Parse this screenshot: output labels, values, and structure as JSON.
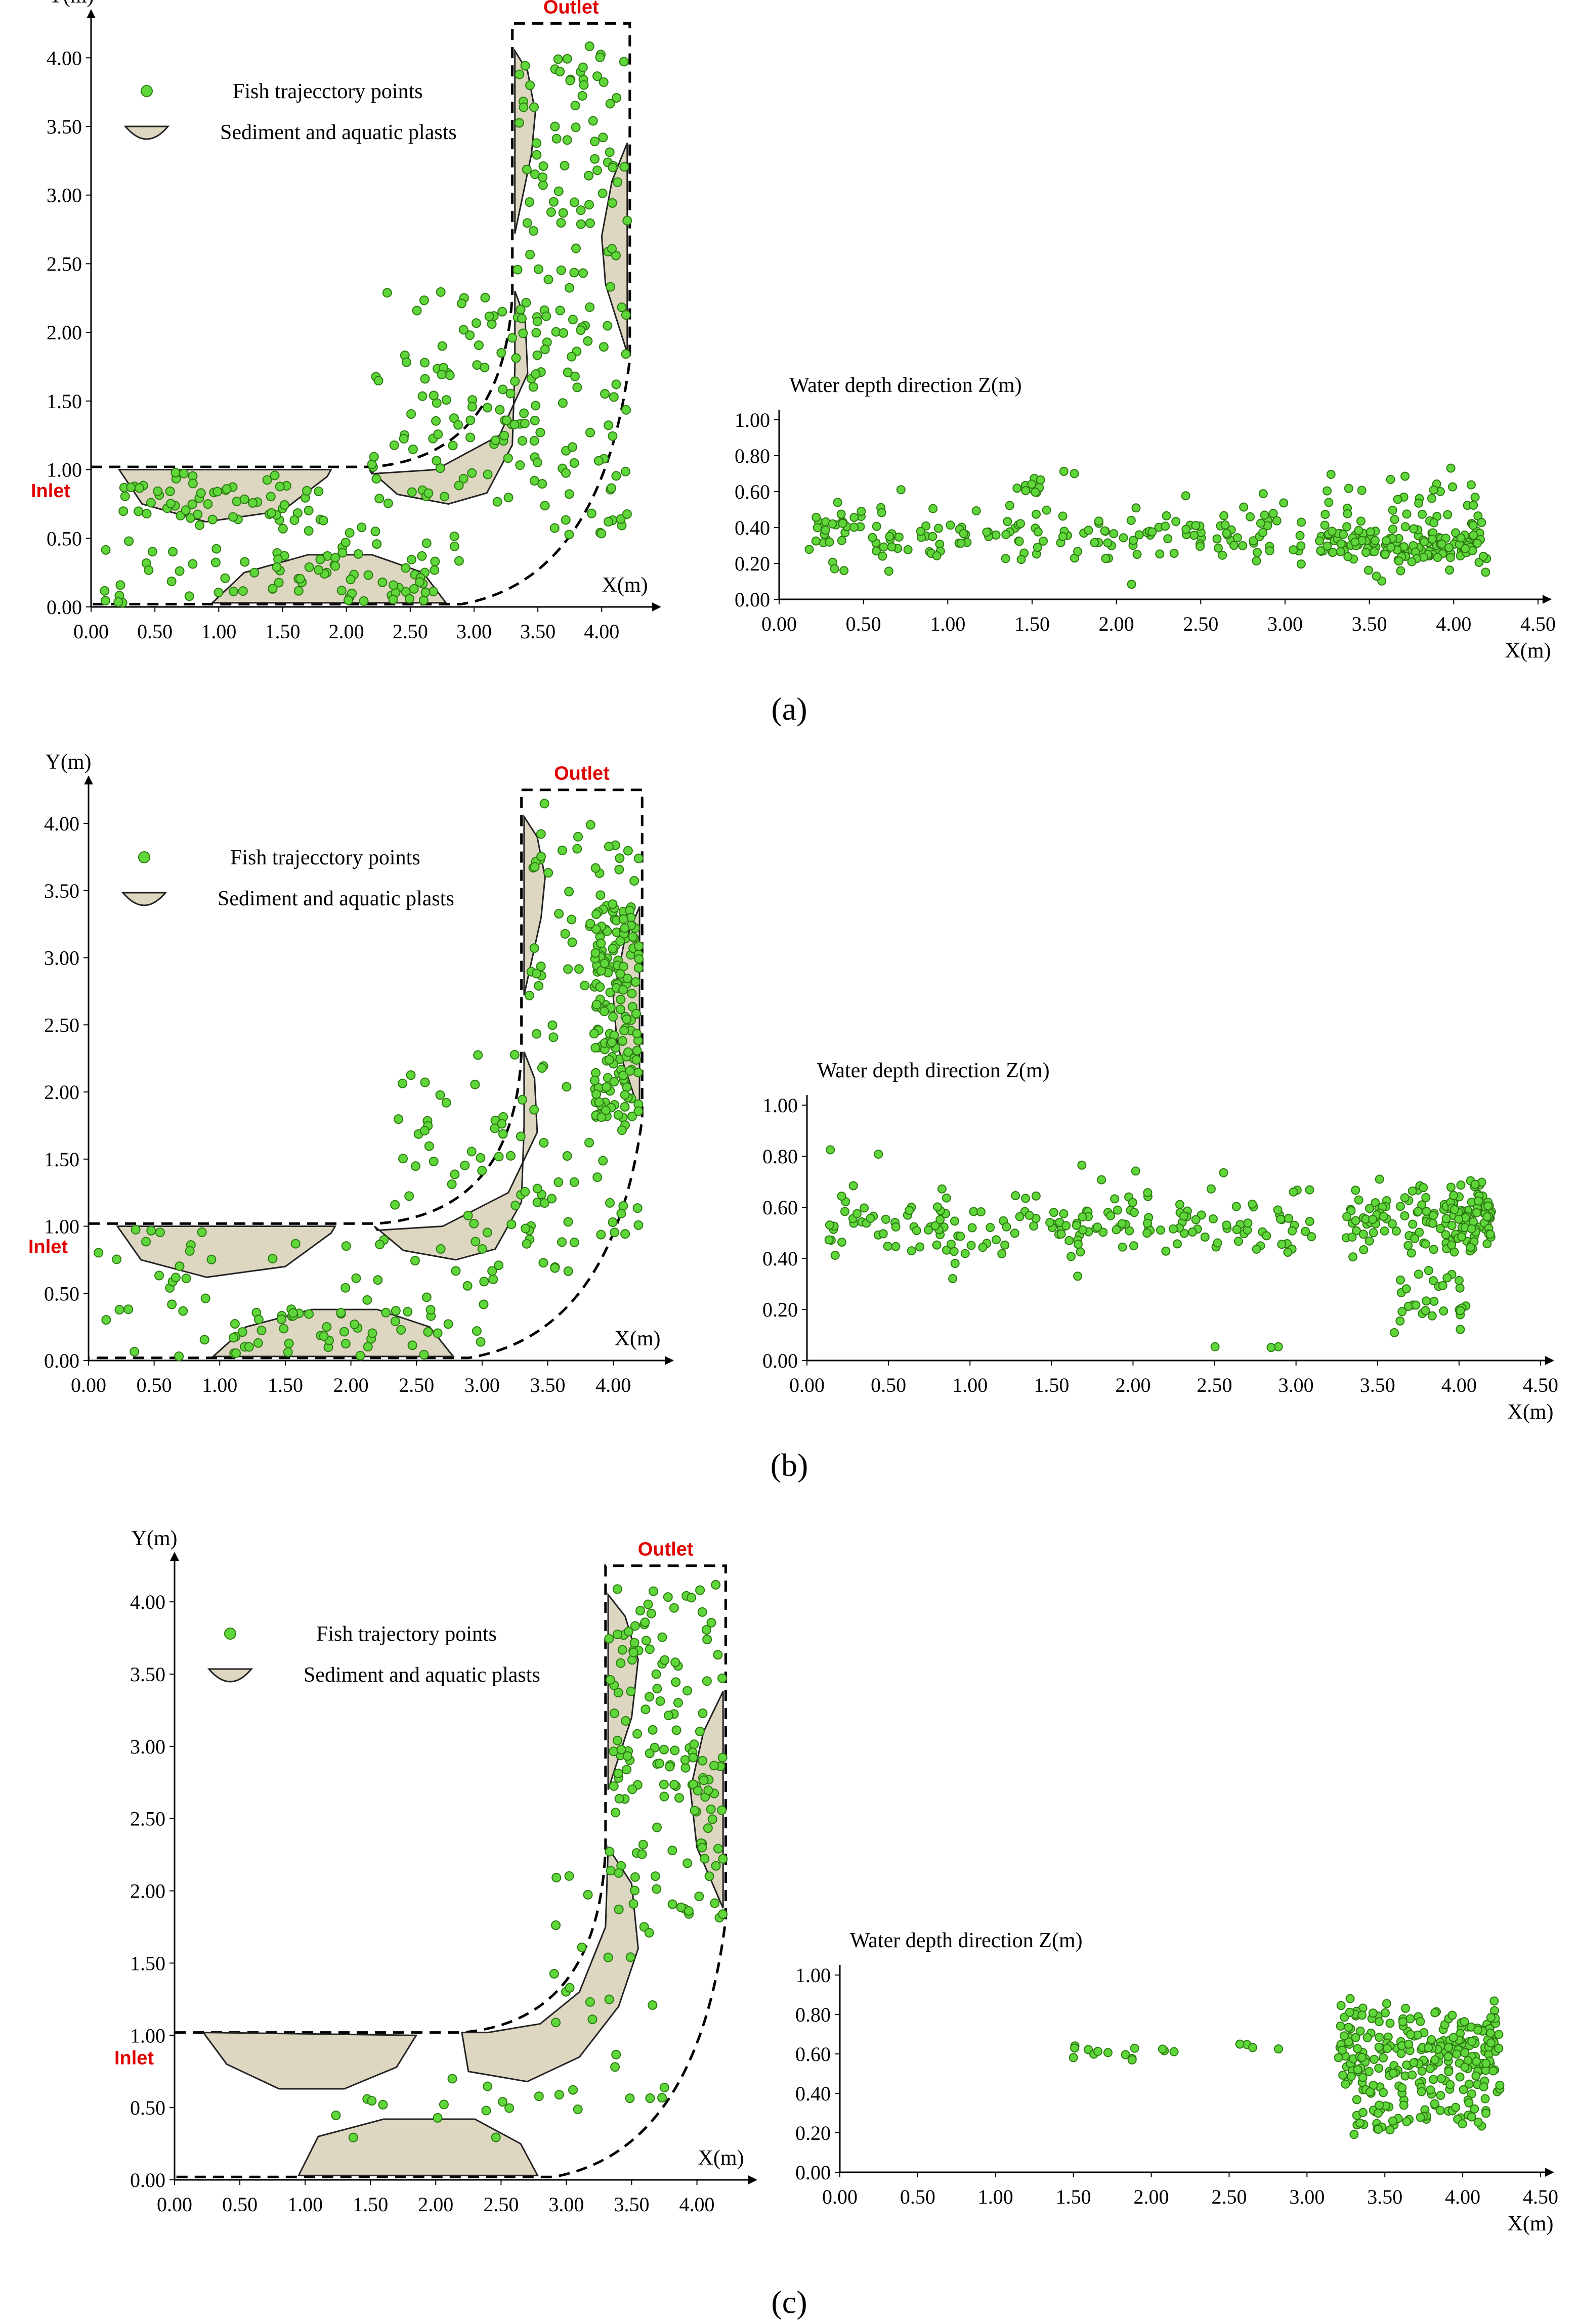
{
  "colors": {
    "point_fill": "#5fd63a",
    "point_stroke": "#2d7a12",
    "sediment_fill": "#ddd6c1",
    "label_red": "#e00000"
  },
  "chart_data": [
    {
      "type": "scatter",
      "view": "plan",
      "panel": "a",
      "ylabel": "Y(m)",
      "xlabel": "X(m)",
      "xlim": [
        0,
        4.3
      ],
      "ylim": [
        0,
        4.2
      ],
      "x_ticks": [
        "0.00",
        "0.50",
        "1.00",
        "1.50",
        "2.00",
        "2.50",
        "3.00",
        "3.50",
        "4.00"
      ],
      "y_ticks": [
        "0.00",
        "0.50",
        "1.00",
        "1.50",
        "2.00",
        "2.50",
        "3.00",
        "3.50",
        "4.00"
      ],
      "inlet_label": "Inlet",
      "outlet_label": "Outlet",
      "legend": {
        "points": "Fish trajecctory points",
        "sediment": "Sediment and aquatic plasts"
      },
      "sediment_patches": [
        {
          "name": "upper-right",
          "points": [
            [
              3.32,
              4.05
            ],
            [
              3.42,
              3.9
            ],
            [
              3.48,
              3.6
            ],
            [
              3.45,
              3.3
            ],
            [
              3.32,
              2.72
            ]
          ]
        },
        {
          "name": "right",
          "points": [
            [
              4.2,
              3.38
            ],
            [
              4.08,
              3.1
            ],
            [
              4.0,
              2.7
            ],
            [
              4.03,
              2.35
            ],
            [
              4.2,
              1.85
            ]
          ]
        },
        {
          "name": "bend",
          "points": [
            [
              3.32,
              2.3
            ],
            [
              3.4,
              2.1
            ],
            [
              3.42,
              1.7
            ],
            [
              3.2,
              1.25
            ],
            [
              2.7,
              1.0
            ],
            [
              2.2,
              0.97
            ],
            [
              2.18,
              1.0
            ],
            [
              2.4,
              0.82
            ],
            [
              2.8,
              0.75
            ],
            [
              3.1,
              0.83
            ],
            [
              3.3,
              1.18
            ],
            [
              3.32,
              1.75
            ]
          ]
        },
        {
          "name": "left",
          "points": [
            [
              0.22,
              1.0
            ],
            [
              0.4,
              0.75
            ],
            [
              0.9,
              0.62
            ],
            [
              1.5,
              0.7
            ],
            [
              1.85,
              0.95
            ],
            [
              1.88,
              1.0
            ]
          ]
        },
        {
          "name": "bottom",
          "points": [
            [
              0.95,
              0.03
            ],
            [
              1.2,
              0.25
            ],
            [
              1.7,
              0.38
            ],
            [
              2.2,
              0.38
            ],
            [
              2.6,
              0.25
            ],
            [
              2.78,
              0.03
            ]
          ]
        }
      ],
      "clusters": [
        {
          "n": 60,
          "x": [
            0.2,
            1.85
          ],
          "y": [
            0.62,
            0.98
          ]
        },
        {
          "n": 55,
          "x": [
            0.05,
            2.9
          ],
          "y": [
            0.03,
            0.6
          ]
        },
        {
          "n": 35,
          "x": [
            1.0,
            2.7
          ],
          "y": [
            0.03,
            0.35
          ]
        },
        {
          "n": 95,
          "x": [
            2.2,
            3.55
          ],
          "y": [
            0.75,
            2.3
          ]
        },
        {
          "n": 70,
          "x": [
            3.3,
            4.2
          ],
          "y": [
            0.45,
            2.2
          ]
        },
        {
          "n": 80,
          "x": [
            3.32,
            4.2
          ],
          "y": [
            2.2,
            4.15
          ]
        }
      ],
      "seed": 11
    },
    {
      "type": "scatter",
      "view": "depth",
      "panel": "a",
      "ylabel": "Water depth direction Z(m)",
      "xlabel": "X(m)",
      "xlim": [
        0,
        4.5
      ],
      "ylim": [
        0,
        1.0
      ],
      "x_ticks": [
        "0.00",
        "0.50",
        "1.00",
        "1.50",
        "2.00",
        "2.50",
        "3.00",
        "3.50",
        "4.00",
        "4.50"
      ],
      "y_ticks": [
        "0.00",
        "0.20",
        "0.40",
        "0.60",
        "0.80",
        "1.00"
      ],
      "clusters": [
        {
          "n": 130,
          "x": [
            0.15,
            3.1
          ],
          "y": [
            0.18,
            0.55
          ]
        },
        {
          "n": 50,
          "x": [
            0.15,
            3.1
          ],
          "y": [
            0.05,
            0.78
          ]
        },
        {
          "n": 110,
          "x": [
            3.2,
            4.2
          ],
          "y": [
            0.2,
            0.4
          ]
        },
        {
          "n": 70,
          "x": [
            3.2,
            4.2
          ],
          "y": [
            0.05,
            0.8
          ]
        },
        {
          "n": 12,
          "x": [
            1.4,
            1.6
          ],
          "y": [
            0.55,
            0.7
          ]
        }
      ],
      "seed": 23
    },
    {
      "type": "scatter",
      "view": "plan",
      "panel": "b",
      "ylabel": "Y(m)",
      "xlabel": "X(m)",
      "xlim": [
        0,
        4.3
      ],
      "ylim": [
        0,
        4.2
      ],
      "x_ticks": [
        "0.00",
        "0.50",
        "1.00",
        "1.50",
        "2.00",
        "2.50",
        "3.00",
        "3.50",
        "4.00"
      ],
      "y_ticks": [
        "0.00",
        "0.50",
        "1.00",
        "1.50",
        "2.00",
        "2.50",
        "3.00",
        "3.50",
        "4.00"
      ],
      "inlet_label": "Inlet",
      "outlet_label": "Outlet",
      "legend": {
        "points": "Fish trajecctory points",
        "sediment": "Sediment and aquatic plasts"
      },
      "sediment_patches": [
        {
          "name": "upper-right",
          "points": [
            [
              3.32,
              4.05
            ],
            [
              3.42,
              3.9
            ],
            [
              3.48,
              3.6
            ],
            [
              3.45,
              3.3
            ],
            [
              3.32,
              2.72
            ]
          ]
        },
        {
          "name": "right",
          "points": [
            [
              4.2,
              3.38
            ],
            [
              4.08,
              3.1
            ],
            [
              4.0,
              2.7
            ],
            [
              4.03,
              2.35
            ],
            [
              4.2,
              1.85
            ]
          ]
        },
        {
          "name": "bend",
          "points": [
            [
              3.32,
              2.3
            ],
            [
              3.4,
              2.1
            ],
            [
              3.42,
              1.7
            ],
            [
              3.2,
              1.25
            ],
            [
              2.7,
              1.0
            ],
            [
              2.2,
              0.97
            ],
            [
              2.18,
              1.0
            ],
            [
              2.4,
              0.82
            ],
            [
              2.8,
              0.75
            ],
            [
              3.1,
              0.83
            ],
            [
              3.3,
              1.18
            ],
            [
              3.32,
              1.75
            ]
          ]
        },
        {
          "name": "left",
          "points": [
            [
              0.22,
              1.0
            ],
            [
              0.4,
              0.75
            ],
            [
              0.9,
              0.62
            ],
            [
              1.5,
              0.7
            ],
            [
              1.85,
              0.95
            ],
            [
              1.88,
              1.0
            ]
          ]
        },
        {
          "name": "bottom",
          "points": [
            [
              0.95,
              0.03
            ],
            [
              1.2,
              0.25
            ],
            [
              1.7,
              0.38
            ],
            [
              2.2,
              0.38
            ],
            [
              2.6,
              0.25
            ],
            [
              2.78,
              0.03
            ]
          ]
        }
      ],
      "clusters": [
        {
          "n": 30,
          "x": [
            0.05,
            2.0
          ],
          "y": [
            0.03,
            0.98
          ]
        },
        {
          "n": 40,
          "x": [
            1.0,
            2.7
          ],
          "y": [
            0.03,
            0.38
          ]
        },
        {
          "n": 25,
          "x": [
            1.9,
            3.2
          ],
          "y": [
            0.1,
            0.9
          ]
        },
        {
          "n": 55,
          "x": [
            2.3,
            3.5
          ],
          "y": [
            0.8,
            2.3
          ]
        },
        {
          "n": 150,
          "x": [
            3.85,
            4.2
          ],
          "y": [
            1.8,
            3.4
          ]
        },
        {
          "n": 90,
          "x": [
            3.32,
            4.2
          ],
          "y": [
            0.6,
            4.15
          ]
        }
      ],
      "seed": 37
    },
    {
      "type": "scatter",
      "view": "depth",
      "panel": "b",
      "ylabel": "Water depth direction Z(m)",
      "xlabel": "X(m)",
      "xlim": [
        0,
        4.5
      ],
      "ylim": [
        0,
        1.0
      ],
      "x_ticks": [
        "0.00",
        "0.50",
        "1.00",
        "1.50",
        "2.00",
        "2.50",
        "3.00",
        "3.50",
        "4.00",
        "4.50"
      ],
      "y_ticks": [
        "0.00",
        "0.20",
        "0.40",
        "0.60",
        "0.80",
        "1.00"
      ],
      "clusters": [
        {
          "n": 130,
          "x": [
            0.1,
            3.1
          ],
          "y": [
            0.4,
            0.65
          ]
        },
        {
          "n": 55,
          "x": [
            0.1,
            3.1
          ],
          "y": [
            0.25,
            0.86
          ]
        },
        {
          "n": 100,
          "x": [
            3.3,
            4.2
          ],
          "y": [
            0.38,
            0.72
          ]
        },
        {
          "n": 60,
          "x": [
            3.9,
            4.2
          ],
          "y": [
            0.4,
            0.72
          ]
        },
        {
          "n": 30,
          "x": [
            3.6,
            4.05
          ],
          "y": [
            0.05,
            0.4
          ]
        },
        {
          "n": 3,
          "x": [
            2.3,
            3.1
          ],
          "y": [
            0.05,
            0.06
          ]
        }
      ],
      "seed": 41
    },
    {
      "type": "scatter",
      "view": "plan",
      "panel": "c",
      "ylabel": "Y(m)",
      "xlabel": "X(m)",
      "xlim": [
        0,
        4.3
      ],
      "ylim": [
        0,
        4.2
      ],
      "x_ticks": [
        "0.00",
        "0.50",
        "1.00",
        "1.50",
        "2.00",
        "2.50",
        "3.00",
        "3.50",
        "4.00"
      ],
      "y_ticks": [
        "0.00",
        "0.50",
        "1.00",
        "1.50",
        "2.00",
        "2.50",
        "3.00",
        "3.50",
        "4.00"
      ],
      "inlet_label": "Inlet",
      "outlet_label": "Outlet",
      "legend": {
        "points": "Fish trajectory points",
        "sediment": "Sediment and aquatic plasts"
      },
      "sediment_patches": [
        {
          "name": "upper-right",
          "points": [
            [
              3.32,
              4.05
            ],
            [
              3.45,
              3.9
            ],
            [
              3.55,
              3.6
            ],
            [
              3.5,
              3.2
            ],
            [
              3.32,
              2.7
            ]
          ]
        },
        {
          "name": "right",
          "points": [
            [
              4.2,
              3.38
            ],
            [
              4.05,
              3.1
            ],
            [
              3.95,
              2.7
            ],
            [
              4.0,
              2.3
            ],
            [
              4.2,
              1.88
            ]
          ]
        },
        {
          "name": "bend",
          "points": [
            [
              3.32,
              2.3
            ],
            [
              3.5,
              2.05
            ],
            [
              3.55,
              1.6
            ],
            [
              3.4,
              1.2
            ],
            [
              3.1,
              0.85
            ],
            [
              2.7,
              0.68
            ],
            [
              2.25,
              0.75
            ],
            [
              2.2,
              1.02
            ],
            [
              2.4,
              1.02
            ],
            [
              2.8,
              1.08
            ],
            [
              3.1,
              1.3
            ],
            [
              3.3,
              1.75
            ]
          ]
        },
        {
          "name": "left",
          "points": [
            [
              0.22,
              1.02
            ],
            [
              0.4,
              0.8
            ],
            [
              0.8,
              0.63
            ],
            [
              1.3,
              0.63
            ],
            [
              1.7,
              0.78
            ],
            [
              1.85,
              1.0
            ]
          ]
        },
        {
          "name": "bottom",
          "points": [
            [
              0.95,
              0.03
            ],
            [
              1.1,
              0.3
            ],
            [
              1.6,
              0.42
            ],
            [
              2.3,
              0.42
            ],
            [
              2.65,
              0.25
            ],
            [
              2.78,
              0.03
            ]
          ]
        }
      ],
      "clusters": [
        {
          "n": 95,
          "x": [
            3.32,
            4.2
          ],
          "y": [
            2.6,
            4.15
          ]
        },
        {
          "n": 55,
          "x": [
            3.32,
            4.2
          ],
          "y": [
            1.8,
            3.0
          ]
        },
        {
          "n": 25,
          "x": [
            2.9,
            3.8
          ],
          "y": [
            0.4,
            2.2
          ]
        },
        {
          "n": 15,
          "x": [
            1.2,
            3.2
          ],
          "y": [
            0.1,
            0.7
          ]
        }
      ],
      "seed": 53
    },
    {
      "type": "scatter",
      "view": "depth",
      "panel": "c",
      "ylabel": "Water depth direction Z(m)",
      "xlabel": "X(m)",
      "xlim": [
        0,
        4.5
      ],
      "ylim": [
        0,
        1.0
      ],
      "x_ticks": [
        "0.00",
        "0.50",
        "1.00",
        "1.50",
        "2.00",
        "2.50",
        "3.00",
        "3.50",
        "4.00",
        "4.50"
      ],
      "y_ticks": [
        "0.00",
        "0.20",
        "0.40",
        "0.60",
        "0.80",
        "1.00"
      ],
      "clusters": [
        {
          "n": 18,
          "x": [
            1.5,
            3.0
          ],
          "y": [
            0.55,
            0.7
          ]
        },
        {
          "n": 230,
          "x": [
            3.2,
            4.25
          ],
          "y": [
            0.35,
            0.9
          ]
        },
        {
          "n": 60,
          "x": [
            3.3,
            4.15
          ],
          "y": [
            0.18,
            0.45
          ]
        }
      ],
      "seed": 67
    }
  ],
  "panel_labels": {
    "a": "(a)",
    "b": "(b)",
    "c": "(c)"
  }
}
